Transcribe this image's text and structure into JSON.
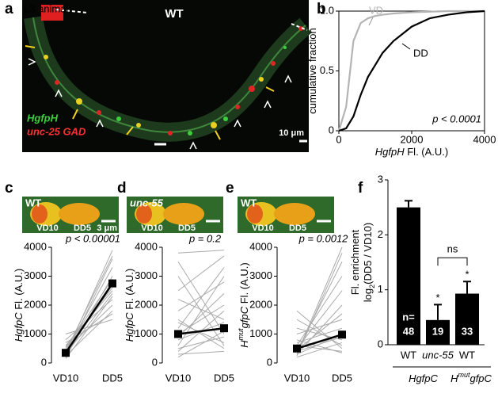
{
  "panel_labels": [
    "a",
    "b",
    "c",
    "d",
    "e",
    "f"
  ],
  "image_a": {
    "title": "L3 animal",
    "label": "WT",
    "channels": [
      "HgfpH",
      "unc-25 GAD"
    ],
    "scale": "10 μm"
  },
  "chart_data": [
    {
      "type": "line",
      "ylabel": [
        {
          "text": "cumulative fraction"
        }
      ],
      "xlabel": [
        {
          "text": "HgfpH",
          "style": "italic"
        },
        {
          "text": " Fl. (A.U.)"
        }
      ],
      "x": [
        0,
        200,
        400,
        600,
        800,
        1000,
        1200,
        1500,
        2000,
        2500,
        3000,
        3500,
        4000
      ],
      "series": [
        {
          "name": "VD",
          "color": "#b4b4b4",
          "values": [
            0,
            0.2,
            0.75,
            0.9,
            0.94,
            0.96,
            0.97,
            0.98,
            0.99,
            0.995,
            1,
            1,
            1
          ]
        },
        {
          "name": "DD",
          "color": "#000000",
          "values": [
            0,
            0.02,
            0.12,
            0.3,
            0.45,
            0.55,
            0.65,
            0.75,
            0.87,
            0.94,
            0.97,
            0.99,
            1
          ]
        }
      ],
      "xlim": [
        0,
        4000
      ],
      "xticks": [
        0,
        2000,
        4000
      ],
      "ylim": [
        0,
        1
      ],
      "yticks": [
        0,
        0.5,
        {
          "value": 1,
          "label": "1.0"
        }
      ],
      "annotation": "p < 0.0001"
    },
    {
      "type": "paired",
      "inset": {
        "label": "WT",
        "cells": [
          "VD10",
          "DD5"
        ],
        "scale": "3 μm"
      },
      "ylabel": [
        {
          "text": "HgfpC",
          "style": "italic"
        },
        {
          "text": " Fl. (A.U.)"
        }
      ],
      "categories": [
        "VD10",
        "DD5"
      ],
      "ylim": [
        0,
        4000
      ],
      "yticks": [
        0,
        1000,
        2000,
        3000,
        4000
      ],
      "annotation": "p < 0.00001",
      "mean": [
        350,
        2750
      ],
      "mean_color": "#000000",
      "pair_color": "#aaaaaa",
      "pairs": [
        [
          300,
          3900
        ],
        [
          250,
          3600
        ],
        [
          400,
          3300
        ],
        [
          200,
          3000
        ],
        [
          500,
          2900
        ],
        [
          350,
          2700
        ],
        [
          600,
          2500
        ],
        [
          300,
          2400
        ],
        [
          800,
          2200
        ],
        [
          450,
          2000
        ],
        [
          250,
          1800
        ],
        [
          700,
          1700
        ],
        [
          1000,
          1500
        ],
        [
          400,
          3700
        ],
        [
          550,
          2600
        ],
        [
          150,
          2300
        ]
      ]
    },
    {
      "type": "paired",
      "inset": {
        "label": "unc-55",
        "cells": [
          "VD10",
          "DD5"
        ]
      },
      "ylabel": [
        {
          "text": "HgfpC",
          "style": "italic"
        },
        {
          "text": " Fl. (A.U.)"
        }
      ],
      "categories": [
        "VD10",
        "DD5"
      ],
      "ylim": [
        0,
        4000
      ],
      "yticks": [
        0,
        1000,
        2000,
        3000,
        4000
      ],
      "annotation": "p = 0.2",
      "mean": [
        1000,
        1200
      ],
      "mean_color": "#000000",
      "pair_color": "#aaaaaa",
      "pairs": [
        [
          3800,
          3900
        ],
        [
          3500,
          1000
        ],
        [
          3000,
          600
        ],
        [
          2500,
          3700
        ],
        [
          2200,
          1500
        ],
        [
          1800,
          2800
        ],
        [
          1500,
          500
        ],
        [
          1200,
          3300
        ],
        [
          1000,
          2000
        ],
        [
          800,
          1400
        ],
        [
          600,
          3000
        ],
        [
          500,
          900
        ],
        [
          400,
          1800
        ],
        [
          300,
          400
        ],
        [
          900,
          2400
        ],
        [
          1400,
          700
        ],
        [
          200,
          1100
        ]
      ]
    },
    {
      "type": "paired",
      "inset": {
        "label": "WT",
        "cells": [
          "VD10",
          "DD5"
        ]
      },
      "ylabel": [
        {
          "text": "H",
          "style": "italic"
        },
        {
          "text": "mut",
          "style": "sup"
        },
        {
          "text": "gfpC",
          "style": "italic"
        },
        {
          "text": " Fl. (A.U.)"
        }
      ],
      "categories": [
        "VD10",
        "DD5"
      ],
      "ylim": [
        0,
        4000
      ],
      "yticks": [
        0,
        1000,
        2000,
        3000,
        4000
      ],
      "annotation": "p = 0.0012",
      "mean": [
        500,
        980
      ],
      "mean_color": "#000000",
      "pair_color": "#aaaaaa",
      "pairs": [
        [
          300,
          4000
        ],
        [
          250,
          3800
        ],
        [
          400,
          3500
        ],
        [
          600,
          3000
        ],
        [
          500,
          2500
        ],
        [
          300,
          2000
        ],
        [
          1000,
          1500
        ],
        [
          700,
          1200
        ],
        [
          400,
          900
        ],
        [
          200,
          700
        ],
        [
          1200,
          800
        ],
        [
          1500,
          600
        ],
        [
          600,
          400
        ],
        [
          300,
          1000
        ],
        [
          800,
          350
        ],
        [
          450,
          1700
        ],
        [
          1800,
          500
        ]
      ]
    },
    {
      "type": "bar",
      "ylabel_lines": [
        [
          {
            "text": "Fl. enrichment"
          }
        ],
        [
          {
            "text": "log"
          },
          {
            "text": "2",
            "style": "sub"
          },
          {
            "text": "(DD5 / VD10)"
          }
        ]
      ],
      "categories": [
        "WT",
        "unc-55",
        "WT"
      ],
      "values": [
        2.5,
        0.45,
        0.93
      ],
      "errors": [
        0.12,
        0.28,
        0.22
      ],
      "color": "#000000",
      "n_prefix": "n=",
      "n": [
        48,
        19,
        33
      ],
      "stars": [
        null,
        "*",
        "*"
      ],
      "bracket_label": "ns",
      "groups": [
        [
          {
            "text": "HgfpC",
            "style": "italic"
          }
        ],
        [
          {
            "text": "H",
            "style": "italic"
          },
          {
            "text": "mut",
            "style": "sup"
          },
          {
            "text": "gfpC",
            "style": "italic"
          }
        ]
      ],
      "ylim": [
        0,
        3
      ],
      "yticks": [
        0,
        1,
        2,
        3
      ]
    }
  ]
}
